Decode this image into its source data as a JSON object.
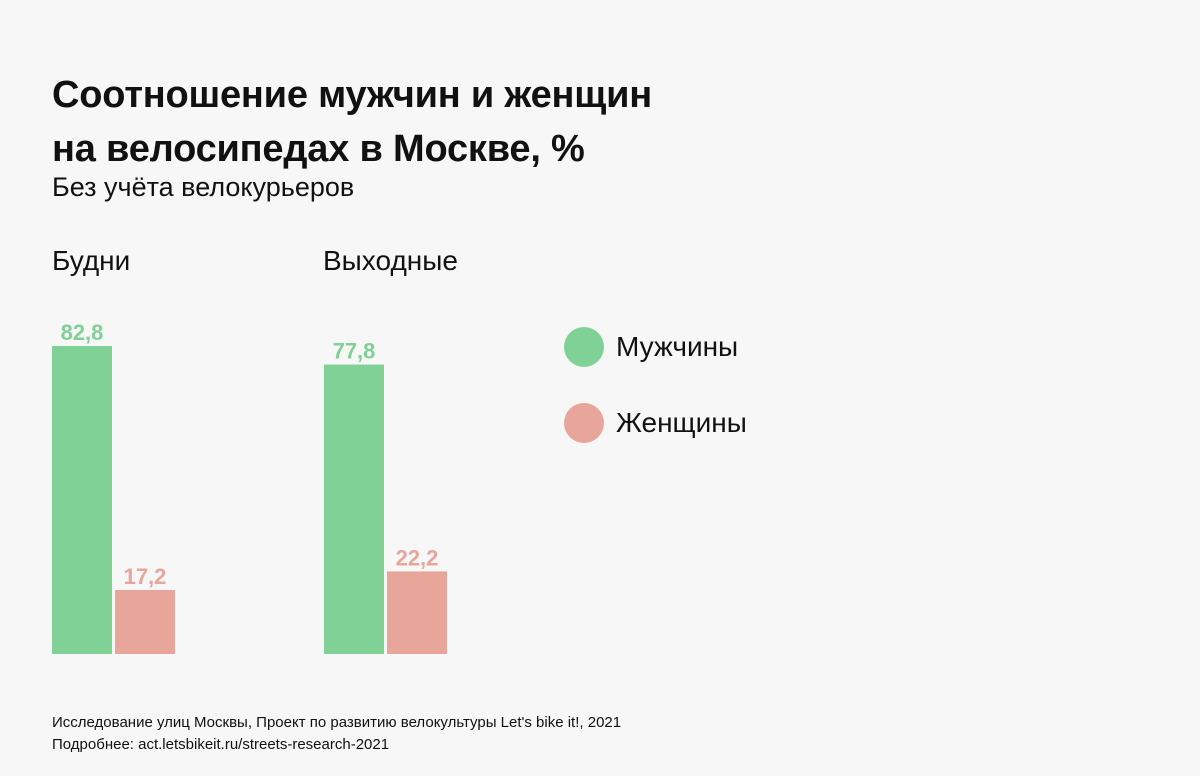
{
  "header": {
    "title_line1": "Соотношение мужчин и женщин",
    "title_line2": "на велосипедах в Москве, %",
    "subtitle": "Без учёта велокурьеров"
  },
  "legend": {
    "men": "Мужчины",
    "women": "Женщины"
  },
  "footer": {
    "line1": "Исследование улиц Москвы, Проект по развитию велокультуры Let's bike it!, 2021",
    "line2": "Подробнее: act.letsbikeit.ru/streets-research-2021"
  },
  "colors": {
    "men": "#7fd195",
    "women": "#e8a69b"
  },
  "chart_data": {
    "type": "bar",
    "title": "Соотношение мужчин и женщин на велосипедах в Москве, %",
    "subtitle": "Без учёта велокурьеров",
    "categories": [
      "Будни",
      "Выходные"
    ],
    "series": [
      {
        "name": "Мужчины",
        "values": [
          82.8,
          77.8
        ],
        "labels": [
          "82,8",
          "77,8"
        ]
      },
      {
        "name": "Женщины",
        "values": [
          17.2,
          22.2
        ],
        "labels": [
          "17,2",
          "22,2"
        ]
      }
    ],
    "ylim": [
      0,
      100
    ],
    "grid": false,
    "legend_position": "right"
  }
}
